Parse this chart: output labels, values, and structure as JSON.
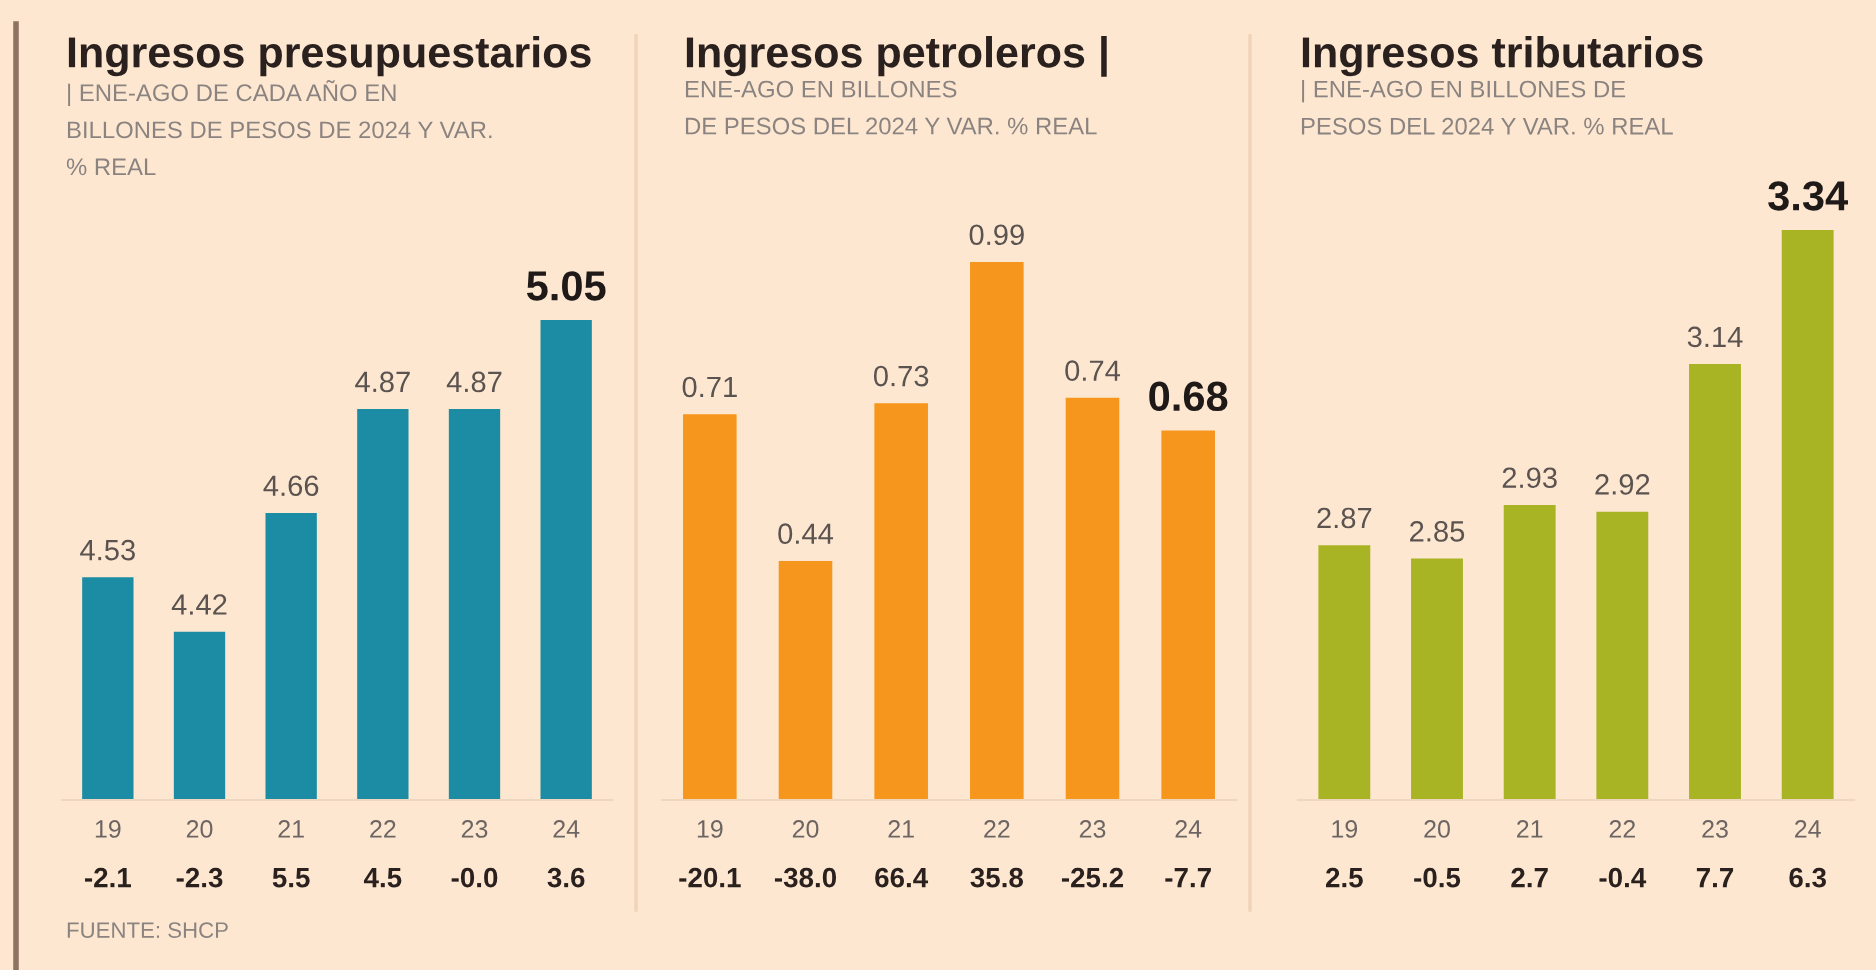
{
  "chart_data": [
    {
      "type": "bar",
      "title": "Ingresos presupuestarios",
      "subtitle": "| ENE-AGO DE CADA AÑO EN\nBILLONES DE PESOS DE 2024 Y VAR.\n% REAL",
      "categories": [
        "19",
        "20",
        "21",
        "22",
        "23",
        "24"
      ],
      "values": [
        4.53,
        4.42,
        4.66,
        4.87,
        4.87,
        5.05
      ],
      "color": "#1b8ca4",
      "ylim": [
        4.08,
        5.05
      ],
      "data_labels": true,
      "tick_labels": "x",
      "annotations": [
        "-2.1",
        "-2.3",
        "5.5",
        "4.5",
        "-0.0",
        "3.6",
        "FUENTE: SHCP"
      ]
    },
    {
      "type": "bar",
      "title": "Ingresos petroleros |",
      "subtitle": "ENE-AGO EN BILLONES\nDE PESOS DEL 2024 Y VAR. % REAL",
      "categories": [
        "19",
        "20",
        "21",
        "22",
        "23",
        "24"
      ],
      "values": [
        0.71,
        0.44,
        0.73,
        0.99,
        0.74,
        0.68
      ],
      "color": "#f6961c",
      "ylim": [
        0,
        0.99
      ],
      "data_labels": true,
      "tick_labels": "x",
      "annotations": [
        "-20.1",
        "-38.0",
        "66.4",
        "35.8",
        "-25.2",
        "-7.7"
      ]
    },
    {
      "type": "bar",
      "title": "Ingresos tributarios",
      "subtitle": "| ENE-AGO EN BILLONES DE\nPESOS DEL 2024 Y VAR. % REAL",
      "categories": [
        "19",
        "20",
        "21",
        "22",
        "23",
        "24"
      ],
      "values": [
        2.87,
        2.85,
        2.93,
        2.92,
        3.14,
        3.34
      ],
      "color": "#a8b424",
      "ylim": [
        2.49,
        3.34
      ],
      "data_labels": true,
      "tick_labels": "x",
      "annotations": [
        "2.5",
        "-0.5",
        "2.7",
        "-0.4",
        "7.7",
        "6.3"
      ]
    }
  ]
}
